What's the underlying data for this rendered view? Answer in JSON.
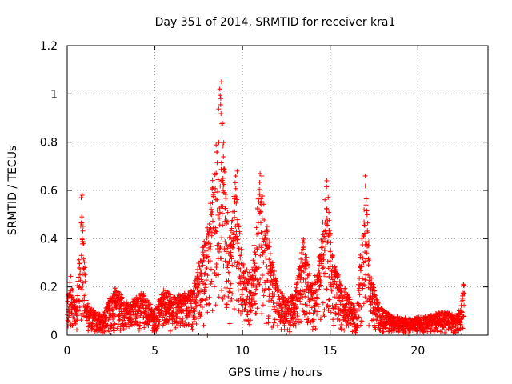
{
  "chart_data": {
    "type": "scatter",
    "title": "Day 351 of 2014, SRMTID for receiver kra1",
    "xlabel": "GPS time / hours",
    "ylabel": "SRMTID / TECUs",
    "xlim": [
      0,
      24
    ],
    "ylim": [
      0,
      1.2
    ],
    "xticks": [
      0,
      5,
      10,
      15,
      20
    ],
    "xtick_labels": [
      "0",
      "5",
      "10",
      "15",
      "20"
    ],
    "yticks": [
      0,
      0.2,
      0.4,
      0.6,
      0.8,
      1.0,
      1.2
    ],
    "ytick_labels": [
      "0",
      "0.2",
      "0.4",
      "0.6",
      "0.8",
      "1",
      "1.2"
    ],
    "grid": true,
    "marker": "plus",
    "series_color": "#ff0000",
    "envelope_points": [
      [
        0.0,
        0.15
      ],
      [
        0.2,
        0.25
      ],
      [
        0.5,
        0.12
      ],
      [
        0.85,
        0.58
      ],
      [
        1.0,
        0.3
      ],
      [
        1.2,
        0.12
      ],
      [
        2.0,
        0.08
      ],
      [
        2.7,
        0.2
      ],
      [
        3.5,
        0.13
      ],
      [
        4.3,
        0.18
      ],
      [
        5.0,
        0.1
      ],
      [
        5.5,
        0.2
      ],
      [
        6.0,
        0.16
      ],
      [
        7.0,
        0.18
      ],
      [
        7.5,
        0.3
      ],
      [
        8.0,
        0.45
      ],
      [
        8.5,
        0.8
      ],
      [
        8.75,
        1.05
      ],
      [
        9.0,
        0.7
      ],
      [
        9.3,
        0.4
      ],
      [
        9.6,
        0.68
      ],
      [
        10.0,
        0.3
      ],
      [
        10.5,
        0.25
      ],
      [
        11.0,
        0.67
      ],
      [
        11.5,
        0.4
      ],
      [
        12.0,
        0.2
      ],
      [
        12.5,
        0.15
      ],
      [
        13.0,
        0.18
      ],
      [
        13.5,
        0.42
      ],
      [
        14.0,
        0.2
      ],
      [
        14.4,
        0.35
      ],
      [
        14.8,
        0.64
      ],
      [
        15.2,
        0.3
      ],
      [
        15.8,
        0.2
      ],
      [
        16.5,
        0.1
      ],
      [
        17.0,
        0.66
      ],
      [
        17.3,
        0.25
      ],
      [
        17.8,
        0.12
      ],
      [
        18.5,
        0.08
      ],
      [
        19.5,
        0.07
      ],
      [
        20.5,
        0.08
      ],
      [
        21.5,
        0.1
      ],
      [
        22.3,
        0.08
      ],
      [
        22.6,
        0.21
      ]
    ],
    "notable_points": [
      [
        8.8,
        1.05
      ],
      [
        8.7,
        1.02
      ],
      [
        0.85,
        0.58
      ],
      [
        0.8,
        0.57
      ],
      [
        11.0,
        0.67
      ],
      [
        11.1,
        0.66
      ],
      [
        14.8,
        0.64
      ],
      [
        17.0,
        0.66
      ],
      [
        9.7,
        0.68
      ],
      [
        22.6,
        0.21
      ],
      [
        8.0,
        0.0
      ]
    ]
  }
}
